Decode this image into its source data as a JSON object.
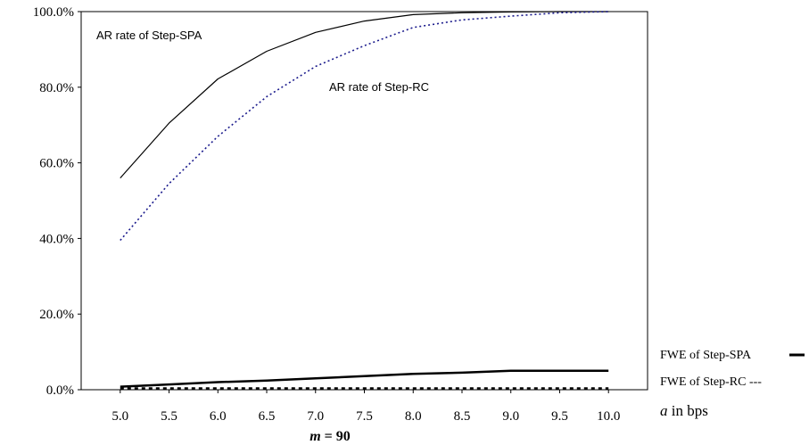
{
  "chart_data": {
    "type": "line",
    "x": [
      5.0,
      5.5,
      6.0,
      6.5,
      7.0,
      7.5,
      8.0,
      8.5,
      9.0,
      9.5,
      10.0
    ],
    "x_tick_labels": [
      "5.0",
      "5.5",
      "6.0",
      "6.5",
      "7.0",
      "7.5",
      "8.0",
      "8.5",
      "9.0",
      "9.5",
      "10.0"
    ],
    "y_tick_labels": [
      "0.0%",
      "20.0%",
      "40.0%",
      "60.0%",
      "80.0%",
      "100.0%"
    ],
    "y_ticks": [
      0,
      20,
      40,
      60,
      80,
      100
    ],
    "ylim": [
      0,
      100
    ],
    "xlim": [
      4.6,
      10.4
    ],
    "grid": false,
    "series": [
      {
        "name": "AR rate of Step-SPA",
        "style": "solid-thin",
        "color": "#000000",
        "values": [
          56.0,
          70.5,
          82.2,
          89.5,
          94.5,
          97.5,
          99.2,
          99.7,
          99.9,
          100.0,
          100.0
        ]
      },
      {
        "name": "AR rate of Step-RC",
        "style": "dotted",
        "color": "#1a1a8c",
        "values": [
          39.5,
          54.5,
          67.0,
          77.5,
          85.5,
          91.0,
          95.8,
          97.8,
          98.8,
          99.7,
          100.0
        ]
      },
      {
        "name": "FWE of Step-SPA",
        "style": "solid-thick",
        "color": "#000000",
        "values": [
          0.8,
          1.4,
          2.0,
          2.4,
          3.0,
          3.6,
          4.2,
          4.5,
          5.0,
          5.0,
          5.0
        ]
      },
      {
        "name": "FWE of Step-RC",
        "style": "dashed-thick",
        "color": "#000000",
        "values": [
          0.3,
          0.3,
          0.3,
          0.3,
          0.3,
          0.3,
          0.3,
          0.3,
          0.3,
          0.3,
          0.3
        ]
      }
    ],
    "annotations": {
      "spa_ar": "AR rate of Step-SPA",
      "rc_ar": "AR rate of Step-RC"
    },
    "legend": {
      "fwe_spa": "FWE of Step-SPA",
      "fwe_rc": "FWE of Step-RC ---"
    },
    "xlabel": "a in bps",
    "xlabel_var": "a",
    "xlabel_unit": " in bps",
    "caption": "m = 90",
    "caption_var": "m",
    "caption_rest": " = 90"
  }
}
